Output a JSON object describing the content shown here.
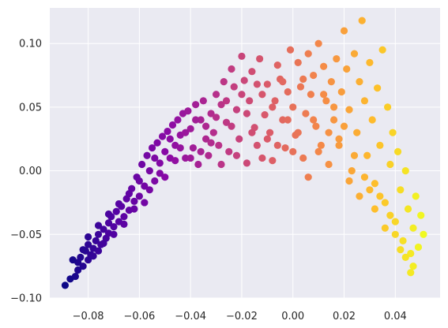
{
  "chart_data": {
    "type": "scatter",
    "title": "",
    "xlabel": "",
    "ylabel": "",
    "xlim": [
      -0.095,
      0.0575
    ],
    "ylim": [
      -0.1,
      0.128
    ],
    "grid": true,
    "background": "#eaeaf2",
    "grid_color": "#ffffff",
    "colormap": "plasma",
    "x_ticks": [
      {
        "value": -0.08,
        "label": "−0.08"
      },
      {
        "value": -0.06,
        "label": "−0.06"
      },
      {
        "value": -0.04,
        "label": "−0.04"
      },
      {
        "value": -0.02,
        "label": "−0.02"
      },
      {
        "value": 0.0,
        "label": "0.00"
      },
      {
        "value": 0.02,
        "label": "0.02"
      },
      {
        "value": 0.04,
        "label": "0.04"
      }
    ],
    "y_ticks": [
      {
        "value": -0.1,
        "label": "−0.10"
      },
      {
        "value": -0.05,
        "label": "−0.05"
      },
      {
        "value": 0.0,
        "label": "0.00"
      },
      {
        "value": 0.05,
        "label": "0.05"
      },
      {
        "value": 0.1,
        "label": "0.10"
      }
    ],
    "points": [
      [
        -0.089,
        -0.09
      ],
      [
        -0.087,
        -0.085
      ],
      [
        -0.085,
        -0.083
      ],
      [
        -0.084,
        -0.072
      ],
      [
        -0.083,
        -0.068
      ],
      [
        -0.082,
        -0.075
      ],
      [
        -0.081,
        -0.063
      ],
      [
        -0.08,
        -0.07
      ],
      [
        -0.08,
        -0.058
      ],
      [
        -0.079,
        -0.066
      ],
      [
        -0.078,
        -0.061
      ],
      [
        -0.077,
        -0.055
      ],
      [
        -0.076,
        -0.063
      ],
      [
        -0.076,
        -0.05
      ],
      [
        -0.075,
        -0.058
      ],
      [
        -0.074,
        -0.046
      ],
      [
        -0.073,
        -0.053
      ],
      [
        -0.072,
        -0.041
      ],
      [
        -0.072,
        -0.049
      ],
      [
        -0.071,
        -0.036
      ],
      [
        -0.07,
        -0.044
      ],
      [
        -0.069,
        -0.032
      ],
      [
        -0.068,
        -0.04
      ],
      [
        -0.067,
        -0.028
      ],
      [
        -0.066,
        -0.036
      ],
      [
        -0.065,
        -0.022
      ],
      [
        -0.064,
        -0.031
      ],
      [
        -0.063,
        -0.014
      ],
      [
        -0.062,
        -0.024
      ],
      [
        -0.061,
        -0.005
      ],
      [
        -0.06,
        -0.02
      ],
      [
        -0.059,
        0.005
      ],
      [
        -0.058,
        -0.012
      ],
      [
        -0.057,
        0.012
      ],
      [
        -0.056,
        0.0
      ],
      [
        -0.055,
        0.018
      ],
      [
        -0.054,
        -0.008
      ],
      [
        -0.053,
        0.022
      ],
      [
        -0.052,
        0.006
      ],
      [
        -0.051,
        0.027
      ],
      [
        -0.05,
        -0.005
      ],
      [
        -0.049,
        0.031
      ],
      [
        -0.048,
        0.01
      ],
      [
        -0.047,
        0.036
      ],
      [
        -0.046,
        0.02
      ],
      [
        -0.045,
        0.04
      ],
      [
        -0.044,
        0.028
      ],
      [
        -0.043,
        0.045
      ],
      [
        -0.042,
        0.01
      ],
      [
        -0.041,
        0.047
      ],
      [
        -0.04,
        0.033
      ],
      [
        -0.039,
        0.018
      ],
      [
        -0.038,
        0.052
      ],
      [
        -0.037,
        0.005
      ],
      [
        -0.036,
        0.04
      ],
      [
        -0.035,
        0.055
      ],
      [
        -0.034,
        0.025
      ],
      [
        -0.033,
        0.012
      ],
      [
        -0.032,
        0.045
      ],
      [
        -0.031,
        0.03
      ],
      [
        -0.03,
        0.06
      ],
      [
        -0.029,
        0.02
      ],
      [
        -0.028,
        0.052
      ],
      [
        -0.027,
        0.07
      ],
      [
        -0.026,
        0.038
      ],
      [
        -0.025,
        0.015
      ],
      [
        -0.024,
        0.08
      ],
      [
        -0.023,
        0.066
      ],
      [
        -0.022,
        0.048
      ],
      [
        -0.021,
        0.025
      ],
      [
        -0.02,
        0.09
      ],
      [
        -0.019,
        0.071
      ],
      [
        -0.018,
        0.006
      ],
      [
        -0.017,
        0.055
      ],
      [
        -0.016,
        0.078
      ],
      [
        -0.015,
        0.034
      ],
      [
        -0.014,
        0.02
      ],
      [
        -0.013,
        0.088
      ],
      [
        -0.012,
        0.06
      ],
      [
        -0.011,
        0.044
      ],
      [
        -0.01,
        0.068
      ],
      [
        -0.009,
        0.03
      ],
      [
        -0.008,
        0.008
      ],
      [
        -0.007,
        0.055
      ],
      [
        -0.006,
        0.083
      ],
      [
        -0.005,
        0.072
      ],
      [
        -0.004,
        0.04
      ],
      [
        -0.003,
        0.018
      ],
      [
        -0.002,
        0.062
      ],
      [
        -0.001,
        0.095
      ],
      [
        0.0,
        0.05
      ],
      [
        0.001,
        0.028
      ],
      [
        0.002,
        0.085
      ],
      [
        0.003,
        0.066
      ],
      [
        0.004,
        0.01
      ],
      [
        0.005,
        0.045
      ],
      [
        0.006,
        0.092
      ],
      [
        0.007,
        0.06
      ],
      [
        0.008,
        0.075
      ],
      [
        0.009,
        0.035
      ],
      [
        0.01,
        0.1
      ],
      [
        0.011,
        0.02
      ],
      [
        0.012,
        0.082
      ],
      [
        0.013,
        0.055
      ],
      [
        0.014,
        0.005
      ],
      [
        0.015,
        0.07
      ],
      [
        0.016,
        0.04
      ],
      [
        0.017,
        0.088
      ],
      [
        0.018,
        0.025
      ],
      [
        0.019,
        0.062
      ],
      [
        0.02,
        0.11
      ],
      [
        0.021,
        0.08
      ],
      [
        0.022,
        0.048
      ],
      [
        0.023,
        0.0
      ],
      [
        0.024,
        0.092
      ],
      [
        0.025,
        0.03
      ],
      [
        0.026,
        0.07
      ],
      [
        0.027,
        0.118
      ],
      [
        0.028,
        0.055
      ],
      [
        0.029,
        0.012
      ],
      [
        0.03,
        0.085
      ],
      [
        0.031,
        0.04
      ],
      [
        0.032,
        -0.01
      ],
      [
        0.033,
        0.065
      ],
      [
        0.034,
        0.02
      ],
      [
        0.035,
        0.095
      ],
      [
        0.036,
        -0.025
      ],
      [
        0.037,
        0.05
      ],
      [
        0.038,
        0.005
      ],
      [
        0.039,
        0.03
      ],
      [
        0.04,
        -0.04
      ],
      [
        0.041,
        0.015
      ],
      [
        0.042,
        -0.015
      ],
      [
        0.043,
        -0.055
      ],
      [
        0.044,
        0.0
      ],
      [
        0.045,
        -0.03
      ],
      [
        0.046,
        -0.065
      ],
      [
        0.047,
        -0.045
      ],
      [
        0.048,
        -0.02
      ],
      [
        0.049,
        -0.06
      ],
      [
        0.05,
        -0.035
      ],
      [
        0.051,
        -0.05
      ],
      [
        0.047,
        -0.075
      ],
      [
        0.046,
        -0.08
      ],
      [
        0.044,
        -0.068
      ],
      [
        0.042,
        -0.062
      ],
      [
        0.04,
        -0.05
      ],
      [
        0.038,
        -0.035
      ],
      [
        0.036,
        -0.045
      ],
      [
        0.034,
        -0.02
      ],
      [
        0.032,
        -0.03
      ],
      [
        0.03,
        -0.015
      ],
      [
        0.028,
        -0.005
      ],
      [
        0.026,
        -0.02
      ],
      [
        0.024,
        0.012
      ],
      [
        0.022,
        -0.008
      ],
      [
        0.02,
        0.035
      ],
      [
        0.018,
        0.02
      ],
      [
        0.016,
        0.05
      ],
      [
        0.014,
        0.03
      ],
      [
        0.012,
        0.06
      ],
      [
        0.01,
        0.015
      ],
      [
        0.008,
        0.04
      ],
      [
        0.006,
        -0.005
      ],
      [
        0.004,
        0.072
      ],
      [
        0.002,
        0.03
      ],
      [
        0.0,
        0.015
      ],
      [
        -0.002,
        0.04
      ],
      [
        -0.004,
        0.07
      ],
      [
        -0.006,
        0.02
      ],
      [
        -0.008,
        0.05
      ],
      [
        -0.01,
        0.025
      ],
      [
        -0.012,
        0.01
      ],
      [
        -0.014,
        0.068
      ],
      [
        -0.016,
        0.03
      ],
      [
        -0.018,
        0.045
      ],
      [
        -0.02,
        0.06
      ],
      [
        -0.022,
        0.012
      ],
      [
        -0.024,
        0.035
      ],
      [
        -0.026,
        0.055
      ],
      [
        -0.028,
        0.005
      ],
      [
        -0.03,
        0.042
      ],
      [
        -0.032,
        0.022
      ],
      [
        -0.034,
        0.035
      ],
      [
        -0.036,
        0.015
      ],
      [
        -0.038,
        0.04
      ],
      [
        -0.04,
        0.01
      ],
      [
        -0.042,
        0.03
      ],
      [
        -0.044,
        0.018
      ],
      [
        -0.046,
        0.008
      ],
      [
        -0.048,
        0.025
      ],
      [
        -0.05,
        0.015
      ],
      [
        -0.052,
        -0.002
      ],
      [
        -0.054,
        0.01
      ],
      [
        -0.056,
        -0.015
      ],
      [
        -0.058,
        -0.025
      ],
      [
        -0.06,
        -0.008
      ],
      [
        -0.062,
        -0.03
      ],
      [
        -0.064,
        -0.018
      ],
      [
        -0.066,
        -0.042
      ],
      [
        -0.068,
        -0.026
      ],
      [
        -0.07,
        -0.05
      ],
      [
        -0.072,
        -0.034
      ],
      [
        -0.074,
        -0.057
      ],
      [
        -0.076,
        -0.043
      ],
      [
        -0.078,
        -0.067
      ],
      [
        -0.08,
        -0.052
      ],
      [
        -0.082,
        -0.062
      ],
      [
        -0.084,
        -0.078
      ],
      [
        -0.086,
        -0.07
      ]
    ]
  }
}
